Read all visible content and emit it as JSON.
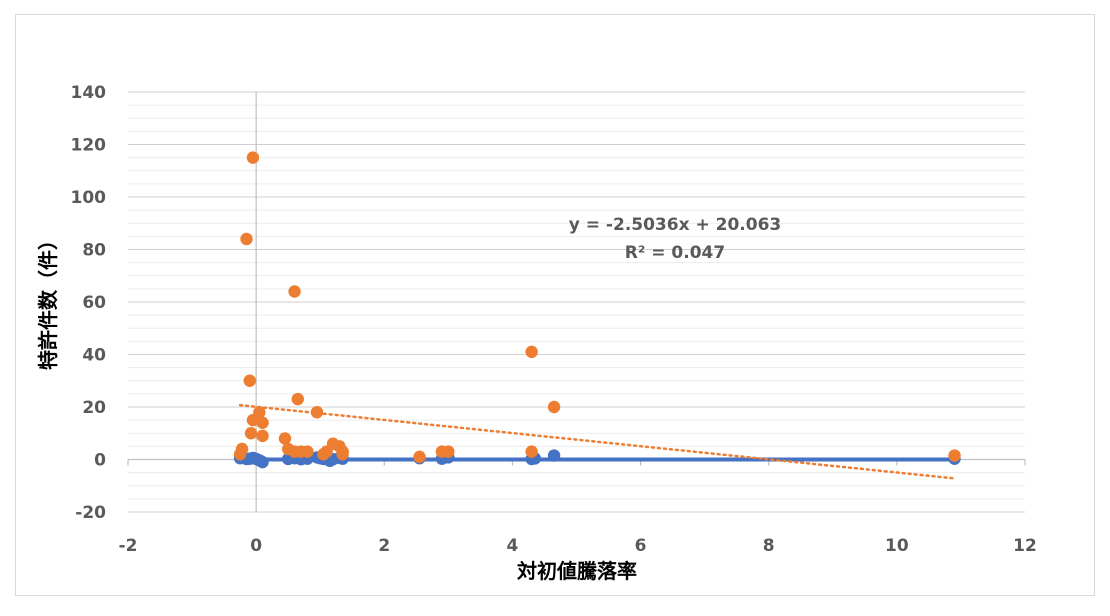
{
  "chart_data": {
    "type": "scatter",
    "xlabel": "対初値騰落率",
    "ylabel": "特許件数（件）",
    "xlim": [
      -2,
      12
    ],
    "ylim": [
      -20,
      140
    ],
    "xticks": [
      -2,
      0,
      2,
      4,
      6,
      8,
      10,
      12
    ],
    "yticks": [
      -20,
      0,
      20,
      40,
      60,
      80,
      100,
      120,
      140
    ],
    "grid": "horizontal",
    "trendline_equation": "y = -2.5036x + 20.063",
    "trendline_r2": "R² = 0.047",
    "colors": {
      "blue": "#4472c4",
      "orange": "#ed7d31",
      "grid": "#d9d9d9",
      "axis": "#bfbfbf"
    },
    "series": [
      {
        "color": "#4472c4",
        "points": [
          [
            -0.25,
            0.5
          ],
          [
            -0.15,
            0.2
          ],
          [
            -0.1,
            0.3
          ],
          [
            -0.05,
            0.6
          ],
          [
            0.0,
            0.2
          ],
          [
            0.05,
            -0.3
          ],
          [
            0.1,
            -1.0
          ],
          [
            0.5,
            0.2
          ],
          [
            0.6,
            0.5
          ],
          [
            0.7,
            0.1
          ],
          [
            0.8,
            0.3
          ],
          [
            0.95,
            0.8
          ],
          [
            1.0,
            0.5
          ],
          [
            1.05,
            0.2
          ],
          [
            1.1,
            0.6
          ],
          [
            1.15,
            -0.5
          ],
          [
            1.2,
            0.1
          ],
          [
            1.3,
            0.6
          ],
          [
            1.35,
            0.3
          ],
          [
            2.55,
            0.5
          ],
          [
            2.9,
            0.3
          ],
          [
            3.0,
            0.8
          ],
          [
            4.3,
            0.2
          ],
          [
            4.35,
            0.4
          ],
          [
            4.65,
            1.5
          ],
          [
            10.9,
            0.3
          ]
        ],
        "trendline": {
          "x0": -0.25,
          "y0": 0.0,
          "x1": 10.9,
          "y1": 0.0
        }
      },
      {
        "color": "#ed7d31",
        "points": [
          [
            -0.05,
            115
          ],
          [
            -0.15,
            84
          ],
          [
            0.6,
            64
          ],
          [
            4.3,
            41
          ],
          [
            -0.1,
            30
          ],
          [
            0.65,
            23
          ],
          [
            4.65,
            20
          ],
          [
            0.05,
            18
          ],
          [
            0.95,
            18
          ],
          [
            -0.05,
            15
          ],
          [
            0.1,
            14
          ],
          [
            -0.08,
            10
          ],
          [
            0.1,
            9
          ],
          [
            0.45,
            8
          ],
          [
            1.2,
            6
          ],
          [
            1.3,
            5
          ],
          [
            -0.22,
            4
          ],
          [
            0.5,
            4
          ],
          [
            0.6,
            3
          ],
          [
            0.7,
            3
          ],
          [
            0.8,
            3
          ],
          [
            1.1,
            3
          ],
          [
            1.35,
            3
          ],
          [
            2.9,
            3
          ],
          [
            3.0,
            3
          ],
          [
            4.3,
            3
          ],
          [
            -0.25,
            2
          ],
          [
            1.05,
            2
          ],
          [
            1.35,
            2
          ],
          [
            2.55,
            1
          ],
          [
            10.9,
            1.5
          ]
        ],
        "trendline": {
          "x0": -0.25,
          "y0": 20.7,
          "x1": 10.9,
          "y1": -7.2,
          "style": "dotted"
        }
      }
    ]
  }
}
